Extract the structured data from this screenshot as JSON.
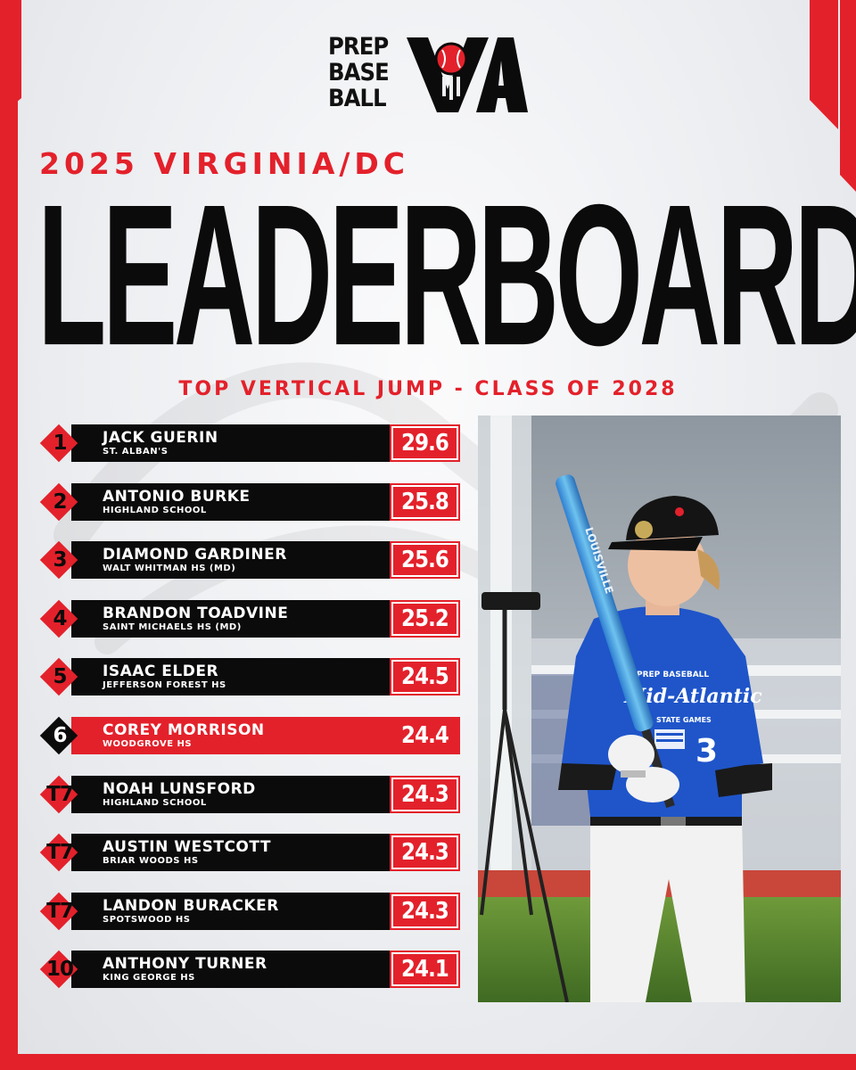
{
  "logo": {
    "line1": "PREP",
    "line2": "BASE",
    "line3": "BALL",
    "mark": "VA"
  },
  "header": {
    "subtitle": "2025 VIRGINIA/DC",
    "title": "LEADERBOARD",
    "category": "TOP VERTICAL JUMP - CLASS OF 2028"
  },
  "leaderboard": [
    {
      "rank": "1",
      "name": "JACK GUERIN",
      "school": "ST. ALBAN'S",
      "score": "29.6"
    },
    {
      "rank": "2",
      "name": "ANTONIO BURKE",
      "school": "HIGHLAND SCHOOL",
      "score": "25.8"
    },
    {
      "rank": "3",
      "name": "DIAMOND GARDINER",
      "school": "WALT WHITMAN HS (MD)",
      "score": "25.6"
    },
    {
      "rank": "4",
      "name": "BRANDON TOADVINE",
      "school": "SAINT MICHAELS HS (MD)",
      "score": "25.2"
    },
    {
      "rank": "5",
      "name": "ISAAC ELDER",
      "school": "JEFFERSON FOREST HS",
      "score": "24.5"
    },
    {
      "rank": "6",
      "name": "COREY MORRISON",
      "school": "WOODGROVE HS",
      "score": "24.4"
    },
    {
      "rank": "T7",
      "name": "NOAH LUNSFORD",
      "school": "HIGHLAND SCHOOL",
      "score": "24.3"
    },
    {
      "rank": "T7",
      "name": "AUSTIN WESTCOTT",
      "school": "BRIAR WOODS HS",
      "score": "24.3"
    },
    {
      "rank": "T7",
      "name": "LANDON BURACKER",
      "school": "SPOTSWOOD HS",
      "score": "24.3"
    },
    {
      "rank": "10",
      "name": "ANTHONY TURNER",
      "school": "KING GEORGE HS",
      "score": "24.1"
    }
  ],
  "photo": {
    "jersey_brand": "PREP BASEBALL",
    "jersey_team": "Mid-Atlantic",
    "jersey_sub": "STATE GAMES",
    "jersey_number": "3",
    "bat_text": "LOUISVILLE"
  },
  "colors": {
    "accent": "#e3212b",
    "dark": "#0b0b0b",
    "background": "#eeeff1"
  }
}
